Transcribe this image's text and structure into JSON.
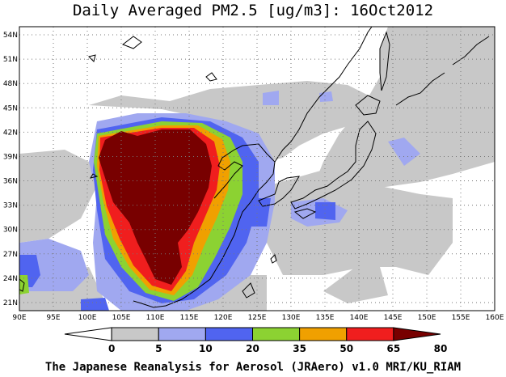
{
  "title": "Daily Averaged PM2.5 [ug/m3]: 16Oct2012",
  "credit": "The Japanese Reanalysis for Aerosol (JRAero) v1.0 MRI/KU_RIAM",
  "map": {
    "lon_range": [
      90,
      160
    ],
    "lat_range": [
      20,
      55
    ],
    "lon_ticks": [
      "90E",
      "95E",
      "100E",
      "105E",
      "110E",
      "115E",
      "120E",
      "125E",
      "130E",
      "135E",
      "140E",
      "145E",
      "150E",
      "155E",
      "160E"
    ],
    "lat_ticks": [
      "21N",
      "24N",
      "27N",
      "30N",
      "33N",
      "36N",
      "39N",
      "42N",
      "45N",
      "48N",
      "51N",
      "54N"
    ],
    "grid": "dotted"
  },
  "colorbar": {
    "levels": [
      "0",
      "5",
      "10",
      "20",
      "35",
      "50",
      "65",
      "80"
    ],
    "colors": [
      "#ffffff",
      "#c8c8c8",
      "#a0a8f0",
      "#5064f0",
      "#8cd232",
      "#f0a000",
      "#f01e1e",
      "#780000"
    ]
  }
}
